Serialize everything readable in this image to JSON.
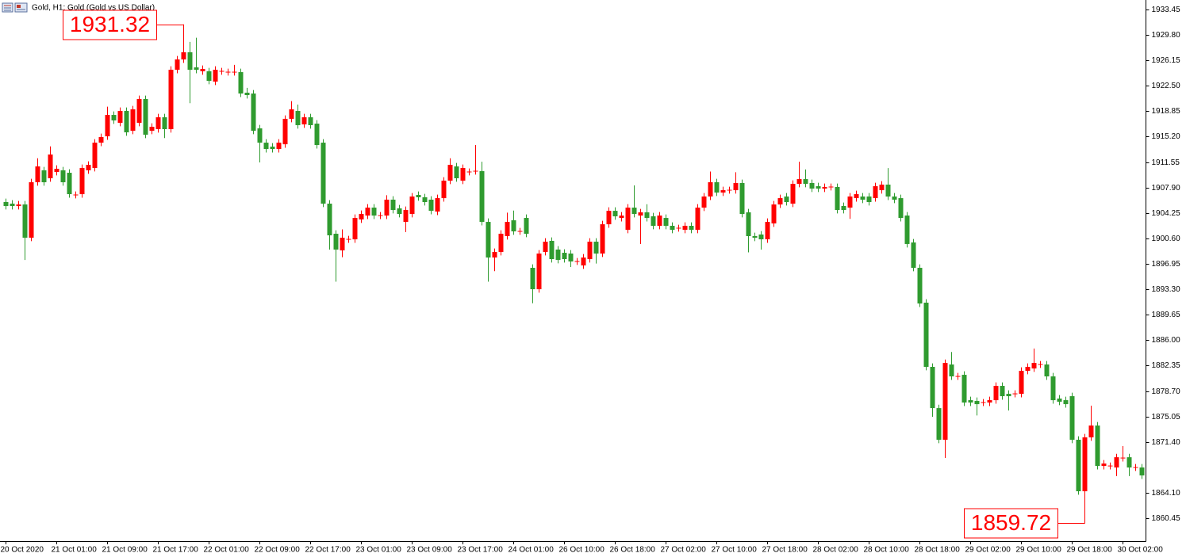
{
  "chart_data": {
    "type": "candlestick",
    "title": "Gold, H1:  Gold (Gold vs US Dollar)",
    "up_color": "#ff0000",
    "down_color": "#2f9b2f",
    "ylim": [
      1857.16,
      1934.81
    ],
    "yticks": [
      1933.45,
      {
        "value": 1929.8,
        "label": "1929.80"
      },
      1926.15,
      {
        "value": 1922.5,
        "label": "1922.50"
      },
      1918.85,
      {
        "value": 1915.2,
        "label": "1915.20"
      },
      1911.55,
      {
        "value": 1907.9,
        "label": "1907.90"
      },
      1904.25,
      {
        "value": 1900.6,
        "label": "1900.60"
      },
      1896.95,
      {
        "value": 1893.3,
        "label": "1893.30"
      },
      1889.65,
      {
        "value": 1886.0,
        "label": "1886.00"
      },
      1882.35,
      {
        "value": 1878.7,
        "label": "1878.70"
      },
      1875.05,
      {
        "value": 1871.4,
        "label": "1871.40"
      },
      {
        "value": 1864.1,
        "label": "1864.10"
      },
      1860.45
    ],
    "max_label": 1931.32,
    "min_label": 1859.72,
    "categories": [
      "20 Oct 2020",
      null,
      null,
      null,
      null,
      null,
      null,
      null,
      "21 Oct 01:00",
      null,
      null,
      null,
      null,
      null,
      null,
      null,
      "21 Oct 09:00",
      null,
      null,
      null,
      null,
      null,
      null,
      null,
      "21 Oct 17:00",
      null,
      null,
      null,
      null,
      null,
      null,
      null,
      "22 Oct 01:00",
      null,
      null,
      null,
      null,
      null,
      null,
      null,
      "22 Oct 09:00",
      null,
      null,
      null,
      null,
      null,
      null,
      null,
      "22 Oct 17:00",
      null,
      null,
      null,
      null,
      null,
      null,
      null,
      "23 Oct 01:00",
      null,
      null,
      null,
      null,
      null,
      null,
      null,
      "23 Oct 09:00",
      null,
      null,
      null,
      null,
      null,
      null,
      null,
      "23 Oct 17:00",
      null,
      null,
      null,
      null,
      null,
      null,
      null,
      "24 Oct 01:00",
      null,
      null,
      null,
      null,
      null,
      null,
      null,
      "26 Oct 10:00",
      null,
      null,
      null,
      null,
      null,
      null,
      null,
      "26 Oct 18:00",
      null,
      null,
      null,
      null,
      null,
      null,
      null,
      "27 Oct 02:00",
      null,
      null,
      null,
      null,
      null,
      null,
      null,
      "27 Oct 10:00",
      null,
      null,
      null,
      null,
      null,
      null,
      null,
      "27 Oct 18:00",
      null,
      null,
      null,
      null,
      null,
      null,
      null,
      "28 Oct 02:00",
      null,
      null,
      null,
      null,
      null,
      null,
      null,
      "28 Oct 10:00",
      null,
      null,
      null,
      null,
      null,
      null,
      null,
      "28 Oct 18:00",
      null,
      null,
      null,
      null,
      null,
      null,
      null,
      "29 Oct 02:00",
      null,
      null,
      null,
      null,
      null,
      null,
      null,
      "29 Oct 10:00",
      null,
      null,
      null,
      null,
      null,
      null,
      null,
      "29 Oct 18:00",
      null,
      null,
      null,
      null,
      null,
      null,
      null,
      "30 Oct 02:00",
      null,
      null,
      null
    ],
    "open": [
      1905.82,
      1905.59,
      1905.25,
      1905.47,
      1900.7,
      1908.66,
      1910.37,
      1909.23,
      1910.14,
      1910.37,
      1910.02,
      1906.84,
      1906.95,
      1910.37,
      1910.71,
      1914.34,
      1915.25,
      1918.32,
      1917.19,
      1918.89,
      1916.05,
      1917.19,
      1920.6,
      1916.05,
      1916.28,
      1917.98,
      1916.28,
      1924.8,
      1926.28,
      1927.31,
      1925.14,
      1924.58,
      1924.58,
      1923.1,
      1924.58,
      1924.46,
      1924.46,
      1924.46,
      1921.51,
      1921.39,
      1916.39,
      1914.34,
      1913.77,
      1913.43,
      1914.11,
      1917.76,
      1918.89,
      1916.96,
      1917.98,
      1917.07,
      1914.34,
      1905.59,
      1901.27,
      1898.88,
      1900.47,
      1900.47,
      1903.32,
      1903.88,
      1905.02,
      1903.88,
      1903.88,
      1906.16,
      1904.91,
      1902.97,
      1904.11,
      1906.84,
      1906.5,
      1906.16,
      1904.45,
      1906.38,
      1908.89,
      1910.93,
      1908.89,
      1910.14,
      1910.25,
      1910.25,
      1902.97,
      1897.86,
      1898.66,
      1900.93,
      1903.2,
      1901.61,
      1903.54,
      1896.38,
      1893.31,
      1898.66,
      1900.25,
      1899.0,
      1898.54,
      1898.43,
      1897.29,
      1896.72,
      1897.63,
      1900.13,
      1898.43,
      1902.63,
      1904.56,
      1903.54,
      1901.84,
      1905.02,
      1903.88,
      1904.34,
      1903.77,
      1902.41,
      1903.54,
      1902.41,
      1902.07,
      1901.84,
      1902.41,
      1901.84,
      1905.02,
      1906.61,
      1908.66,
      1907.18,
      1907.52,
      1907.52,
      1908.55,
      1904.34,
      1900.93,
      1901.16,
      1900.47,
      1902.75,
      1905.47,
      1906.61,
      1905.59,
      1908.43,
      1909.11,
      1908.55,
      1908.09,
      1907.75,
      1907.98,
      1907.98,
      1905.25,
      1905.02,
      1906.38,
      1906.61,
      1906.61,
      1906.38,
      1907.52,
      1908.32,
      1906.61,
      1906.38,
      1903.88,
      1900.02,
      1896.38,
      1891.38,
      1882.17,
      1876.25,
      1871.71,
      1882.51,
      1880.8,
      1881.03,
      1877.39,
      1877.28,
      1877.05,
      1877.05,
      1877.39,
      1879.44,
      1878.3,
      1878.3,
      1878.3,
      1881.6,
      1881.94,
      1882.51,
      1882.51,
      1880.8,
      1877.62,
      1877.39,
      1877.96,
      1871.71,
      1864.32,
      1872.05,
      1873.75,
      1867.95,
      1867.95,
      1867.73,
      1869.09,
      1869.2,
      1867.73,
      1867.73
    ],
    "high": [
      1906.32,
      1906.09,
      1905.97,
      1905.97,
      1909.16,
      1912.1,
      1910.87,
      1913.8,
      1911.09,
      1910.87,
      1910.52,
      1907.34,
      1911.21,
      1911.66,
      1914.84,
      1915.64,
      1919.5,
      1918.82,
      1919.39,
      1919.39,
      1919.62,
      1921.1,
      1921.1,
      1917.12,
      1918.48,
      1918.48,
      1925.3,
      1926.78,
      1931.32,
      1928.8,
      1929.4,
      1925.42,
      1925.08,
      1925.3,
      1925.08,
      1924.96,
      1925.5,
      1924.96,
      1922.2,
      1921.89,
      1916.89,
      1914.84,
      1914.27,
      1914.84,
      1918.26,
      1920.3,
      1919.8,
      1918.48,
      1918.48,
      1917.57,
      1914.84,
      1906.09,
      1901.77,
      1901.9,
      1900.97,
      1904.04,
      1904.61,
      1905.52,
      1905.52,
      1904.38,
      1906.8,
      1906.66,
      1905.41,
      1905.18,
      1907.11,
      1907.34,
      1907.0,
      1906.66,
      1906.88,
      1909.39,
      1912.1,
      1911.43,
      1911.21,
      1910.64,
      1914.0,
      1911.6,
      1903.47,
      1899.16,
      1901.77,
      1904.3,
      1904.6,
      1902.11,
      1904.04,
      1896.88,
      1898.93,
      1900.63,
      1900.75,
      1899.5,
      1899.04,
      1898.93,
      1897.79,
      1898.36,
      1900.63,
      1900.63,
      1903.13,
      1905.06,
      1905.06,
      1904.38,
      1905.52,
      1908.2,
      1904.84,
      1905.5,
      1904.27,
      1904.38,
      1904.04,
      1902.91,
      1902.57,
      1902.91,
      1902.91,
      1905.52,
      1907.11,
      1910.2,
      1909.16,
      1908.02,
      1908.02,
      1910.1,
      1909.05,
      1904.84,
      1901.43,
      1901.66,
      1903.47,
      1905.97,
      1906.88,
      1907.11,
      1908.93,
      1911.6,
      1910.5,
      1909.05,
      1908.59,
      1908.48,
      1908.48,
      1908.48,
      1905.75,
      1907.11,
      1907.45,
      1907.11,
      1907.11,
      1908.59,
      1908.82,
      1910.7,
      1907.11,
      1906.88,
      1904.38,
      1900.52,
      1896.88,
      1891.88,
      1882.67,
      1876.75,
      1883.23,
      1884.3,
      1881.3,
      1881.53,
      1877.89,
      1877.78,
      1877.55,
      1877.89,
      1879.94,
      1879.94,
      1878.8,
      1878.8,
      1882.1,
      1882.67,
      1884.8,
      1883.01,
      1883.01,
      1881.3,
      1878.12,
      1877.89,
      1878.46,
      1872.21,
      1872.55,
      1876.6,
      1874.25,
      1868.8,
      1868.45,
      1869.7,
      1870.8,
      1869.7,
      1868.23,
      1868.23
    ],
    "low": [
      1904.75,
      1904.75,
      1904.75,
      1897.5,
      1900.2,
      1908.16,
      1908.16,
      1908.73,
      1909.64,
      1908.16,
      1906.45,
      1906.34,
      1906.45,
      1909.87,
      1910.21,
      1913.84,
      1914.75,
      1917.03,
      1916.69,
      1915.32,
      1915.55,
      1916.69,
      1914.98,
      1915.55,
      1915.78,
      1915.0,
      1915.78,
      1924.3,
      1925.78,
      1920.0,
      1924.3,
      1924.08,
      1922.71,
      1922.6,
      1924.08,
      1923.96,
      1923.96,
      1920.89,
      1920.67,
      1915.55,
      1911.5,
      1912.93,
      1912.93,
      1912.93,
      1913.61,
      1917.26,
      1916.35,
      1916.46,
      1916.35,
      1913.5,
      1905.09,
      1899.0,
      1894.4,
      1897.9,
      1899.97,
      1899.97,
      1902.82,
      1903.38,
      1903.38,
      1903.38,
      1903.38,
      1904.18,
      1903.61,
      1901.5,
      1903.61,
      1906.0,
      1905.32,
      1904.06,
      1903.95,
      1905.88,
      1908.39,
      1908.73,
      1908.39,
      1909.64,
      1909.75,
      1902.47,
      1894.4,
      1895.9,
      1898.16,
      1900.43,
      1901.11,
      1901.11,
      1900.77,
      1891.3,
      1892.81,
      1898.16,
      1897.13,
      1897.02,
      1897.13,
      1896.5,
      1896.79,
      1896.22,
      1897.13,
      1897.0,
      1897.93,
      1902.13,
      1903.27,
      1903.04,
      1901.34,
      1903.61,
      1899.8,
      1903.04,
      1901.91,
      1901.91,
      1901.91,
      1901.34,
      1901.57,
      1901.34,
      1901.34,
      1901.34,
      1904.52,
      1906.11,
      1906.68,
      1906.68,
      1907.02,
      1907.02,
      1903.61,
      1898.6,
      1900.2,
      1899.0,
      1899.97,
      1902.25,
      1904.97,
      1905.32,
      1905.09,
      1907.93,
      1907.93,
      1907.25,
      1907.25,
      1907.25,
      1907.48,
      1904.18,
      1904.18,
      1903.4,
      1905.88,
      1905.66,
      1905.32,
      1905.88,
      1907.02,
      1906.11,
      1905.66,
      1903.04,
      1899.3,
      1895.88,
      1890.76,
      1881.67,
      1875.0,
      1871.21,
      1869.1,
      1880.3,
      1880.3,
      1876.55,
      1876.55,
      1875.2,
      1876.55,
      1876.55,
      1876.89,
      1877.46,
      1875.9,
      1877.8,
      1877.8,
      1881.1,
      1881.44,
      1882.01,
      1880.3,
      1876.89,
      1876.67,
      1876.32,
      1871.21,
      1863.82,
      1859.72,
      1871.55,
      1867.45,
      1867.45,
      1867.45,
      1866.5,
      1868.59,
      1866.5,
      1867.23,
      1866.09
    ],
    "close": [
      1905.25,
      1905.25,
      1905.47,
      1900.7,
      1908.66,
      1910.93,
      1908.66,
      1912.64,
      1910.59,
      1908.66,
      1906.95,
      1906.84,
      1910.71,
      1911.16,
      1914.34,
      1915.14,
      1918.32,
      1917.53,
      1918.89,
      1915.82,
      1919.12,
      1920.6,
      1915.48,
      1916.62,
      1917.98,
      1916.28,
      1924.8,
      1926.28,
      1927.31,
      1924.8,
      1924.8,
      1924.92,
      1923.21,
      1924.8,
      1924.58,
      1924.46,
      1924.46,
      1921.39,
      1921.17,
      1916.05,
      1914.34,
      1913.43,
      1913.43,
      1914.34,
      1917.76,
      1919.12,
      1916.85,
      1917.98,
      1916.85,
      1914.0,
      1905.59,
      1901.04,
      1899.0,
      1900.7,
      1900.47,
      1903.54,
      1904.11,
      1905.02,
      1903.88,
      1903.88,
      1906.16,
      1904.68,
      1904.11,
      1904.68,
      1906.61,
      1906.5,
      1905.82,
      1904.56,
      1906.38,
      1908.89,
      1911.16,
      1909.23,
      1910.71,
      1910.14,
      1910.25,
      1902.97,
      1897.86,
      1898.66,
      1901.27,
      1902.97,
      1901.61,
      1901.61,
      1901.27,
      1893.31,
      1898.43,
      1900.13,
      1897.63,
      1897.52,
      1897.63,
      1897.29,
      1897.29,
      1897.86,
      1900.13,
      1898.43,
      1902.63,
      1904.56,
      1903.77,
      1903.88,
      1905.02,
      1904.11,
      1904.34,
      1903.54,
      1902.41,
      1903.88,
      1902.41,
      1901.84,
      1902.07,
      1902.41,
      1901.84,
      1905.02,
      1906.61,
      1908.66,
      1907.18,
      1907.52,
      1907.52,
      1908.55,
      1904.11,
      1900.93,
      1900.7,
      1900.47,
      1902.97,
      1905.47,
      1906.38,
      1905.82,
      1908.43,
      1909.11,
      1908.43,
      1907.75,
      1907.75,
      1907.98,
      1907.98,
      1904.68,
      1904.68,
      1906.61,
      1906.95,
      1906.16,
      1905.82,
      1908.09,
      1908.32,
      1906.61,
      1906.16,
      1903.54,
      1899.8,
      1896.38,
      1891.26,
      1882.17,
      1876.25,
      1871.71,
      1882.73,
      1880.8,
      1880.8,
      1877.05,
      1877.05,
      1876.82,
      1877.05,
      1877.39,
      1879.44,
      1877.96,
      1877.96,
      1878.3,
      1881.6,
      1882.17,
      1882.73,
      1882.51,
      1880.8,
      1877.39,
      1877.17,
      1876.82,
      1871.71,
      1864.32,
      1872.05,
      1873.75,
      1867.95,
      1868.3,
      1867.95,
      1869.2,
      1869.09,
      1867.73,
      1867.73,
      1866.59
    ]
  }
}
